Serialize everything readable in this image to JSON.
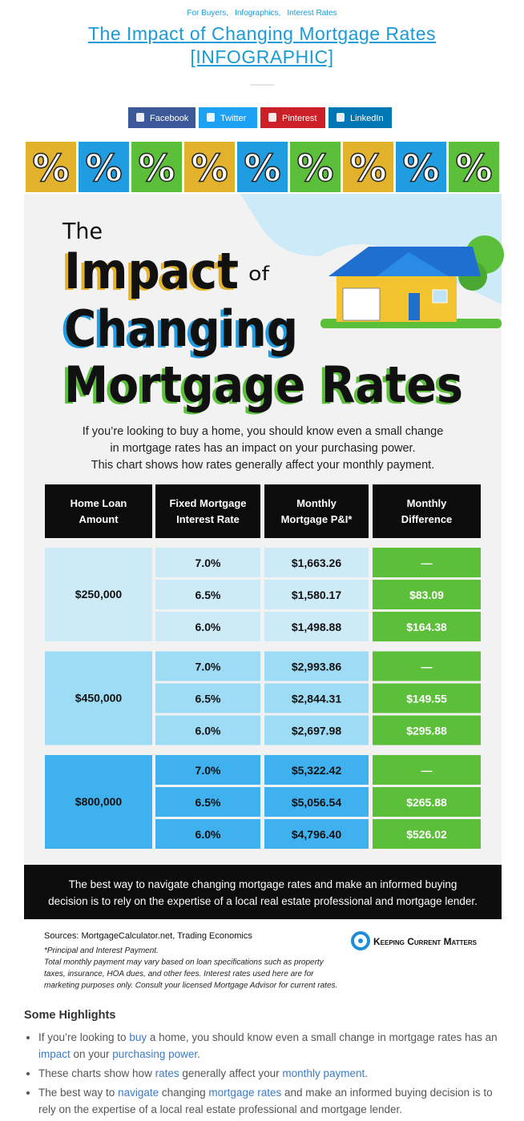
{
  "categories": [
    "For Buyers,",
    "Infographics,",
    "Interest Rates"
  ],
  "title": "The Impact of Changing Mortgage Rates [INFOGRAPHIC]",
  "share": [
    {
      "label": "Facebook",
      "color": "#3b5998"
    },
    {
      "label": "Twitter",
      "color": "#1da1f2"
    },
    {
      "label": "Pinterest",
      "color": "#cb2027"
    },
    {
      "label": "LinkedIn",
      "color": "#0077b5"
    }
  ],
  "infographic": {
    "tiles": {
      "glyph": "%",
      "colors": [
        "#e2b22d",
        "#1f9de0",
        "#5cbf3a",
        "#e2b22d",
        "#1f9de0",
        "#5cbf3a",
        "#e2b22d",
        "#1f9de0",
        "#5cbf3a"
      ]
    },
    "heading": {
      "the": "The",
      "impact": "Impact",
      "of": "of",
      "changing": "Changing",
      "rates": "Mortgage Rates"
    },
    "intro": [
      "If you’re looking to buy a home, you should know even a small change",
      "in mortgage rates has an impact on your purchasing power.",
      "This chart shows how rates generally affect your monthly payment."
    ],
    "table": {
      "headers": [
        [
          "Home Loan",
          "Amount"
        ],
        [
          "Fixed Mortgage",
          "Interest Rate"
        ],
        [
          "Monthly",
          "Mortgage P&I*"
        ],
        [
          "Monthly",
          "Difference"
        ]
      ],
      "groups": [
        {
          "amount": "$250,000",
          "color": "#cdeaf7",
          "rows": [
            [
              "7.0%",
              "$1,663.26",
              "—"
            ],
            [
              "6.5%",
              "$1,580.17",
              "$83.09"
            ],
            [
              "6.0%",
              "$1,498.88",
              "$164.38"
            ]
          ]
        },
        {
          "amount": "$450,000",
          "color": "#9edcf6",
          "rows": [
            [
              "7.0%",
              "$2,993.86",
              "—"
            ],
            [
              "6.5%",
              "$2,844.31",
              "$149.55"
            ],
            [
              "6.0%",
              "$2,697.98",
              "$295.88"
            ]
          ]
        },
        {
          "amount": "$800,000",
          "color": "#3fb1ef",
          "rows": [
            [
              "7.0%",
              "$5,322.42",
              "—"
            ],
            [
              "6.5%",
              "$5,056.54",
              "$265.88"
            ],
            [
              "6.0%",
              "$4,796.40",
              "$526.02"
            ]
          ]
        }
      ]
    },
    "cta": [
      "The best way to navigate changing mortgage rates and make an informed buying",
      "decision is to rely on the expertise of a local real estate professional and mortgage lender."
    ],
    "sources": "Sources: MortgageCalculator.net, Trading Economics",
    "notes": [
      "*Principal and Interest Payment.",
      "Total monthly payment may vary based on loan specifications such as property",
      "taxes, insurance, HOA dues, and other fees. Interest rates used here are for",
      "marketing purposes only. Consult your licensed Mortgage Advisor for current rates."
    ],
    "logo": "Keeping Current Matters"
  },
  "highlights": {
    "title": "Some Highlights",
    "items": [
      [
        "If you’re looking to ",
        {
          "link": "buy"
        },
        " a home, you should know even a small change in mortgage rates has an ",
        {
          "link": "impact"
        },
        " on your ",
        {
          "link": "purchasing power"
        },
        "."
      ],
      [
        "These charts show how ",
        {
          "link": "rates"
        },
        " generally affect your ",
        {
          "link": "monthly payment"
        },
        "."
      ],
      [
        "The best way to ",
        {
          "link": "navigate"
        },
        " changing ",
        {
          "link": "mortgage rates"
        },
        " and make an informed buying decision is to rely on the expertise of a local real estate professional and mortgage lender."
      ]
    ]
  }
}
